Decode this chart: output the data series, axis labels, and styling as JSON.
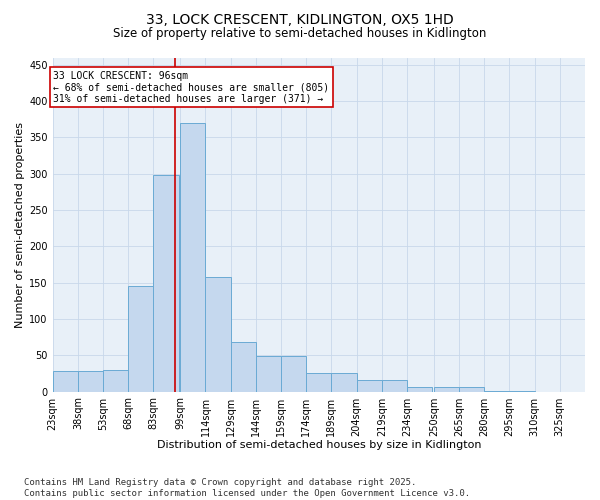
{
  "title_line1": "33, LOCK CRESCENT, KIDLINGTON, OX5 1HD",
  "title_line2": "Size of property relative to semi-detached houses in Kidlington",
  "xlabel": "Distribution of semi-detached houses by size in Kidlington",
  "ylabel": "Number of semi-detached properties",
  "bin_labels": [
    "23sqm",
    "38sqm",
    "53sqm",
    "68sqm",
    "83sqm",
    "99sqm",
    "114sqm",
    "129sqm",
    "144sqm",
    "159sqm",
    "174sqm",
    "189sqm",
    "204sqm",
    "219sqm",
    "234sqm",
    "250sqm",
    "265sqm",
    "280sqm",
    "295sqm",
    "310sqm",
    "325sqm"
  ],
  "bin_edges": [
    23,
    38,
    53,
    68,
    83,
    99,
    114,
    129,
    144,
    159,
    174,
    189,
    204,
    219,
    234,
    250,
    265,
    280,
    295,
    310,
    325
  ],
  "bar_heights": [
    28,
    29,
    30,
    145,
    298,
    370,
    158,
    68,
    49,
    49,
    25,
    25,
    16,
    16,
    6,
    6,
    6,
    1,
    1,
    0,
    0
  ],
  "bar_color": "#c5d8ee",
  "bar_edge_color": "#6aaad4",
  "property_value": 96,
  "vline_color": "#cc0000",
  "annotation_text": "33 LOCK CRESCENT: 96sqm\n← 68% of semi-detached houses are smaller (805)\n31% of semi-detached houses are larger (371) →",
  "annotation_box_color": "#cc0000",
  "ylim": [
    0,
    460
  ],
  "yticks": [
    0,
    50,
    100,
    150,
    200,
    250,
    300,
    350,
    400,
    450
  ],
  "grid_color": "#c8d8ea",
  "bg_color": "#e8f0f8",
  "footer": "Contains HM Land Registry data © Crown copyright and database right 2025.\nContains public sector information licensed under the Open Government Licence v3.0.",
  "title_fontsize": 10,
  "subtitle_fontsize": 8.5,
  "xlabel_fontsize": 8,
  "ylabel_fontsize": 8,
  "tick_fontsize": 7,
  "footer_fontsize": 6.5,
  "annotation_fontsize": 7
}
